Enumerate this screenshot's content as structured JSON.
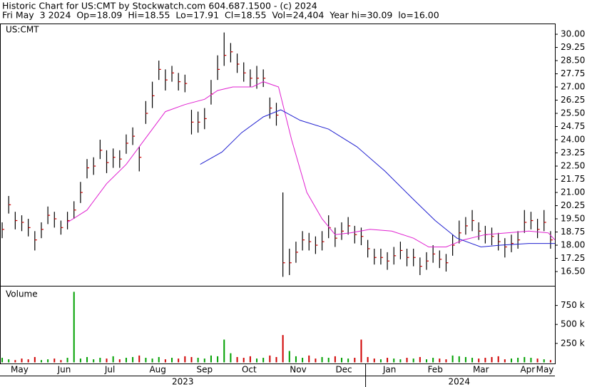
{
  "header": {
    "line1": "Historic Chart for US:CMT by Stockwatch.com 604.687.1500 - (c) 2024",
    "line2": "Fri May  3 2024  Op=18.09  Hi=18.55  Lo=17.91  Cl=18.55  Vol=24,404  Year hi=30.09  lo=16.00"
  },
  "chart_data": [
    {
      "type": "hlc",
      "label": "US:CMT",
      "bar_color": "#000000",
      "close_color": "#cc0000",
      "x": [
        1,
        4,
        7,
        10,
        13,
        16,
        19,
        22,
        25,
        28,
        31,
        34,
        37,
        40,
        43,
        46,
        49,
        52,
        55,
        58,
        61,
        64,
        67,
        70,
        73,
        76,
        79,
        82,
        85,
        88,
        91,
        94,
        97,
        100,
        103,
        106,
        109,
        112,
        115,
        118,
        121,
        124,
        127,
        130,
        133,
        136,
        139,
        142,
        145,
        148,
        151,
        154,
        157,
        160,
        163,
        166,
        169,
        172,
        175,
        178,
        181,
        184,
        187,
        190,
        193,
        196,
        199,
        202,
        205,
        208,
        211,
        214,
        217,
        220,
        223,
        226,
        229,
        232,
        235,
        238,
        241,
        244,
        247,
        250,
        253
      ],
      "high": [
        19.3,
        20.8,
        19.9,
        19.7,
        19.5,
        18.8,
        19.3,
        20.2,
        19.9,
        19.4,
        19.9,
        20.5,
        21.6,
        22.9,
        23.0,
        24.0,
        23.4,
        23.5,
        23.4,
        24.3,
        24.7,
        23.6,
        26.2,
        27.3,
        28.5,
        28.0,
        28.2,
        27.8,
        27.7,
        25.7,
        25.6,
        25.8,
        27.4,
        28.8,
        30.1,
        29.5,
        28.9,
        28.4,
        28.0,
        28.2,
        28.0,
        26.4,
        26.1,
        21.0,
        17.8,
        18.2,
        18.8,
        18.7,
        18.5,
        18.8,
        19.7,
        19.0,
        19.3,
        19.6,
        19.1,
        19.0,
        18.3,
        17.8,
        17.8,
        17.6,
        17.9,
        18.2,
        17.8,
        17.8,
        17.3,
        17.6,
        18.0,
        17.7,
        17.5,
        18.6,
        19.4,
        19.6,
        20.0,
        19.3,
        19.1,
        19.0,
        18.7,
        18.4,
        18.6,
        18.8,
        20.0,
        19.9,
        19.5,
        20.0,
        18.8
      ],
      "low": [
        18.4,
        19.8,
        18.9,
        18.8,
        18.5,
        17.7,
        18.4,
        19.2,
        19.0,
        18.6,
        18.9,
        19.5,
        20.4,
        21.8,
        22.0,
        22.9,
        22.1,
        22.4,
        22.4,
        23.2,
        23.7,
        22.2,
        24.9,
        25.8,
        27.4,
        26.8,
        27.3,
        26.8,
        26.7,
        24.3,
        24.4,
        24.6,
        26.0,
        27.4,
        28.2,
        28.4,
        27.8,
        27.3,
        27.0,
        26.9,
        27.0,
        25.2,
        24.8,
        16.2,
        16.3,
        17.0,
        17.7,
        17.7,
        17.5,
        17.7,
        18.4,
        17.9,
        18.3,
        18.6,
        18.1,
        18.0,
        17.3,
        16.9,
        16.9,
        16.6,
        16.9,
        17.2,
        16.8,
        16.8,
        16.3,
        16.6,
        17.0,
        16.7,
        16.5,
        17.4,
        18.1,
        18.6,
        18.8,
        18.3,
        18.1,
        18.0,
        17.7,
        17.3,
        17.6,
        17.8,
        18.7,
        18.9,
        18.4,
        18.8,
        17.8
      ],
      "close": [
        18.9,
        20.3,
        19.4,
        19.3,
        19.0,
        18.3,
        18.9,
        19.7,
        19.5,
        19.0,
        19.4,
        20.0,
        21.0,
        22.4,
        22.5,
        23.4,
        22.7,
        23.0,
        22.9,
        23.8,
        24.2,
        23.0,
        25.5,
        26.5,
        28.0,
        27.4,
        27.8,
        27.3,
        27.2,
        25.0,
        25.0,
        25.2,
        26.6,
        28.0,
        28.8,
        29.0,
        28.3,
        27.8,
        27.5,
        27.5,
        27.5,
        25.8,
        25.4,
        17.0,
        17.0,
        17.6,
        18.3,
        18.2,
        18.0,
        18.2,
        19.0,
        18.4,
        18.8,
        19.1,
        18.6,
        18.5,
        17.8,
        17.3,
        17.3,
        17.1,
        17.4,
        17.7,
        17.3,
        17.3,
        16.8,
        17.1,
        17.5,
        17.2,
        17.0,
        18.0,
        18.7,
        19.1,
        19.4,
        18.8,
        18.6,
        18.5,
        18.2,
        17.9,
        18.1,
        18.3,
        19.3,
        19.4,
        18.9,
        19.3,
        18.3
      ],
      "series": [
        {
          "color": "#e020d0",
          "x": [
            31,
            40,
            49,
            58,
            67,
            76,
            85,
            94,
            100,
            107,
            116,
            121,
            128,
            134,
            141,
            148,
            154,
            161,
            170,
            180,
            190,
            197,
            205,
            213,
            223,
            233,
            243,
            252,
            255
          ],
          "values": [
            19.3,
            20.0,
            21.5,
            22.6,
            24.1,
            25.6,
            26.0,
            26.3,
            26.8,
            27.0,
            27.0,
            27.3,
            27.0,
            24.0,
            21.0,
            19.5,
            18.6,
            18.7,
            18.9,
            18.8,
            18.4,
            17.9,
            17.9,
            18.3,
            18.6,
            18.7,
            18.8,
            18.7,
            18.3
          ]
        },
        {
          "color": "#2020d0",
          "x": [
            92,
            102,
            111,
            121,
            129,
            138,
            151,
            164,
            177,
            190,
            200,
            210,
            221,
            230,
            243,
            255
          ],
          "values": [
            22.6,
            23.3,
            24.4,
            25.3,
            25.7,
            25.1,
            24.6,
            23.6,
            22.2,
            20.6,
            19.4,
            18.4,
            17.9,
            18.0,
            18.1,
            18.1
          ]
        }
      ],
      "xlim": [
        0,
        255
      ],
      "ylim": [
        15.69,
        30.61
      ],
      "yticks": [
        {
          "value": 16.5,
          "label": "16.50"
        },
        {
          "value": 17.25,
          "label": "17.25"
        },
        {
          "value": 18,
          "label": "18.00"
        },
        {
          "value": 18.75,
          "label": "18.75"
        },
        {
          "value": 19.5,
          "label": "19.50"
        },
        {
          "value": 20.25,
          "label": "20.25"
        },
        {
          "value": 21,
          "label": "21.00"
        },
        {
          "value": 21.75,
          "label": "21.75"
        },
        {
          "value": 22.5,
          "label": "22.50"
        },
        {
          "value": 23.25,
          "label": "23.25"
        },
        {
          "value": 24,
          "label": "24.00"
        },
        {
          "value": 24.75,
          "label": "24.75"
        },
        {
          "value": 25.5,
          "label": "25.50"
        },
        {
          "value": 26.25,
          "label": "26.25"
        },
        {
          "value": 27,
          "label": "27.00"
        },
        {
          "value": 27.75,
          "label": "27.75"
        },
        {
          "value": 28.5,
          "label": "28.50"
        },
        {
          "value": 29.25,
          "label": "29.25"
        },
        {
          "value": 30,
          "label": "30.00"
        }
      ]
    },
    {
      "type": "bar",
      "label": "Volume",
      "up_color": "#00a000",
      "down_color": "#d00000",
      "x": [
        1,
        4,
        7,
        10,
        13,
        16,
        19,
        22,
        25,
        28,
        31,
        34,
        37,
        40,
        43,
        46,
        49,
        52,
        55,
        58,
        61,
        64,
        67,
        70,
        73,
        76,
        79,
        82,
        85,
        88,
        91,
        94,
        97,
        100,
        103,
        106,
        109,
        112,
        115,
        118,
        121,
        124,
        127,
        130,
        133,
        136,
        139,
        142,
        145,
        148,
        151,
        154,
        157,
        160,
        163,
        166,
        169,
        172,
        175,
        178,
        181,
        184,
        187,
        190,
        193,
        196,
        199,
        202,
        205,
        208,
        211,
        214,
        217,
        220,
        223,
        226,
        229,
        232,
        235,
        238,
        241,
        244,
        247,
        250,
        253
      ],
      "values": [
        60000,
        40000,
        30000,
        50000,
        40000,
        70000,
        30000,
        40000,
        50000,
        30000,
        60000,
        930000,
        50000,
        70000,
        40000,
        60000,
        50000,
        80000,
        40000,
        60000,
        70000,
        90000,
        60000,
        50000,
        70000,
        40000,
        60000,
        50000,
        80000,
        70000,
        60000,
        50000,
        90000,
        80000,
        300000,
        120000,
        70000,
        60000,
        80000,
        50000,
        60000,
        90000,
        70000,
        360000,
        150000,
        80000,
        60000,
        90000,
        50000,
        70000,
        60000,
        80000,
        60000,
        50000,
        60000,
        300000,
        70000,
        50000,
        40000,
        60000,
        50000,
        40000,
        60000,
        50000,
        70000,
        40000,
        60000,
        50000,
        40000,
        90000,
        80000,
        70000,
        60000,
        50000,
        60000,
        70000,
        80000,
        40000,
        50000,
        60000,
        70000,
        60000,
        50000,
        40000,
        30000
      ],
      "xlim": [
        0,
        255
      ],
      "ylim": [
        -15000,
        1000000
      ],
      "yticks": [
        {
          "value": 250000,
          "label": "250 k"
        },
        {
          "value": 500000,
          "label": "500 k"
        },
        {
          "value": 750000,
          "label": "750 k"
        }
      ],
      "xticks": [
        {
          "value": 9,
          "label": "May"
        },
        {
          "value": 29.5,
          "label": "Jun"
        },
        {
          "value": 50.5,
          "label": "Jul"
        },
        {
          "value": 72.5,
          "label": "Aug"
        },
        {
          "value": 94,
          "label": "Sep"
        },
        {
          "value": 114.5,
          "label": "Oct"
        },
        {
          "value": 137,
          "label": "Nov"
        },
        {
          "value": 158,
          "label": "Dec"
        },
        {
          "value": 179,
          "label": "Jan"
        },
        {
          "value": 200,
          "label": "Feb"
        },
        {
          "value": 221,
          "label": "Mar"
        },
        {
          "value": 242.5,
          "label": "Apr"
        },
        {
          "value": 254,
          "label": "May"
        }
      ],
      "year_labels": [
        {
          "value": 84,
          "label": "2023"
        },
        {
          "value": 211,
          "label": "2024"
        }
      ],
      "year_split": 168
    }
  ]
}
